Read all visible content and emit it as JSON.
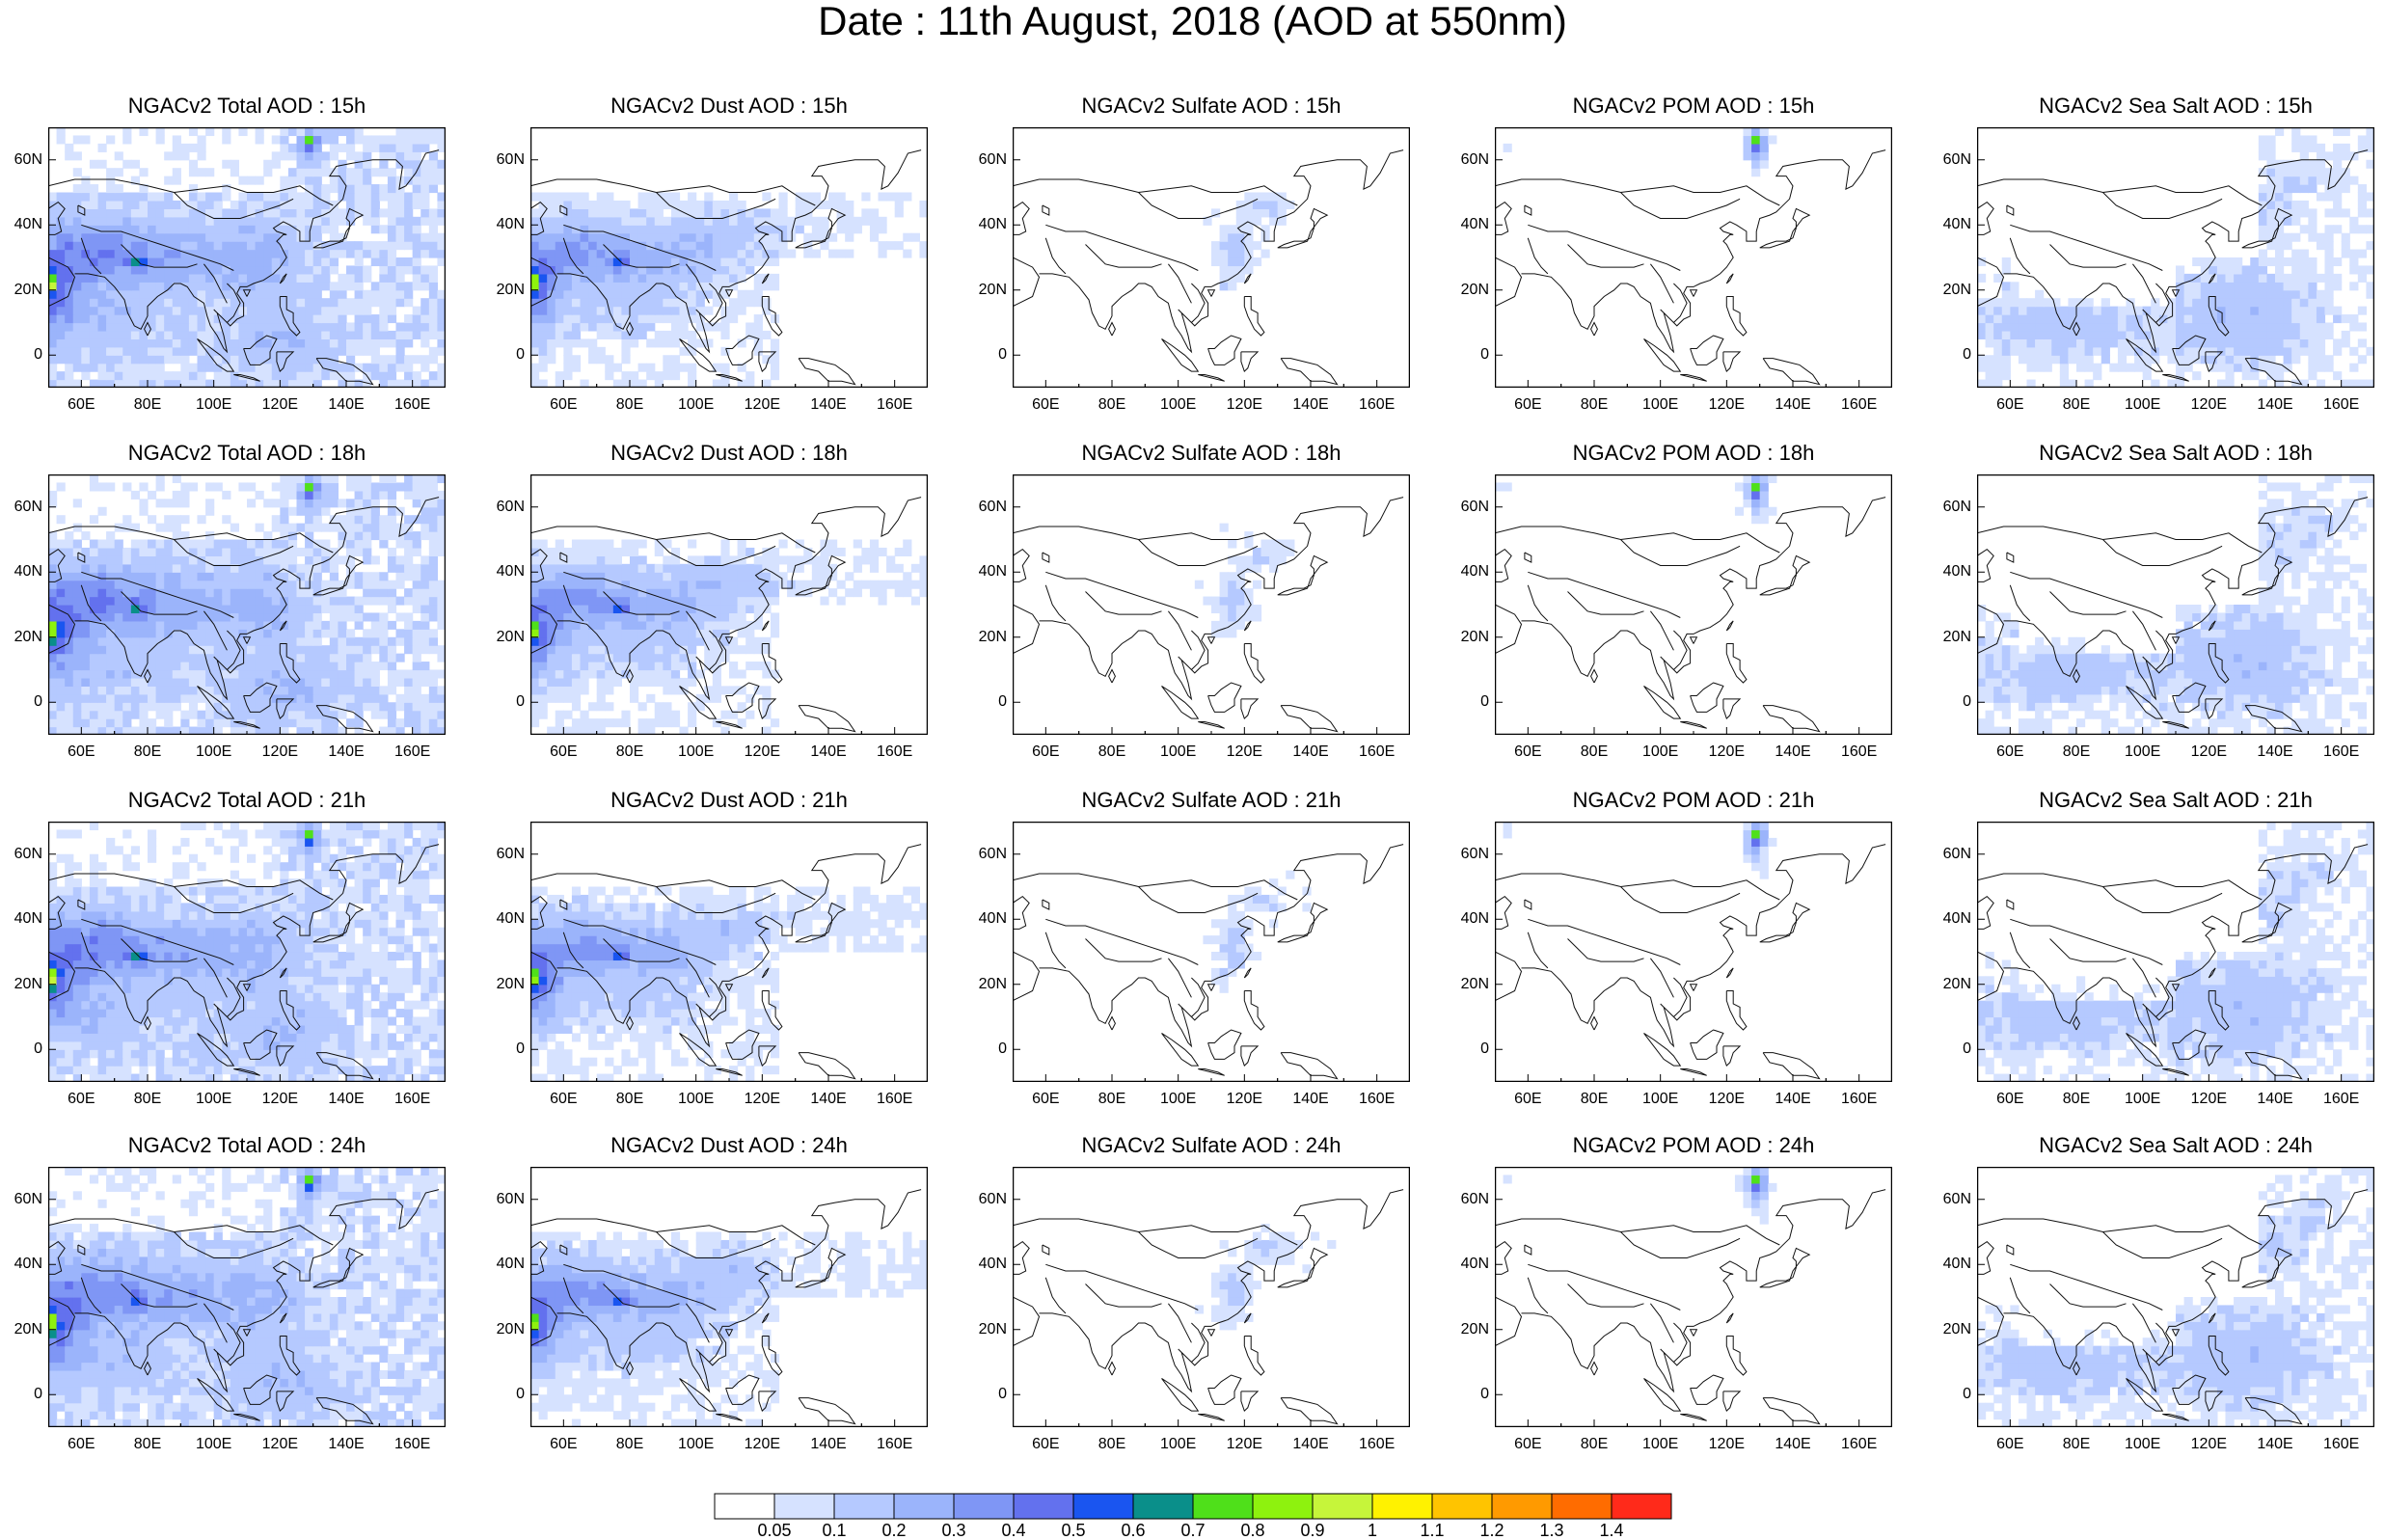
{
  "title": "Date : 11th August, 2018 (AOD at 550nm)",
  "rows": [
    {
      "hour": "15h",
      "titles": [
        "NGACv2 Total AOD : 15h",
        "NGACv2 Dust AOD : 15h",
        "NGACv2 Sulfate AOD : 15h",
        "NGACv2 POM AOD : 15h",
        "NGACv2 Sea Salt AOD : 15h"
      ]
    },
    {
      "hour": "18h",
      "titles": [
        "NGACv2 Total AOD : 18h",
        "NGACv2 Dust AOD : 18h",
        "NGACv2 Sulfate AOD : 18h",
        "NGACv2 POM AOD : 18h",
        "NGACv2 Sea Salt AOD : 18h"
      ]
    },
    {
      "hour": "21h",
      "titles": [
        "NGACv2 Total AOD : 21h",
        "NGACv2 Dust AOD : 21h",
        "NGACv2 Sulfate AOD : 21h",
        "NGACv2 POM AOD : 21h",
        "NGACv2 Sea Salt AOD : 21h"
      ]
    },
    {
      "hour": "24h",
      "titles": [
        "NGACv2 Total AOD : 24h",
        "NGACv2 Dust AOD : 24h",
        "NGACv2 Sulfate AOD : 24h",
        "NGACv2 POM AOD : 24h",
        "NGACv2 Sea Salt  AOD : 24h"
      ]
    }
  ],
  "species": [
    "Total",
    "Dust",
    "Sulfate",
    "POM",
    "Sea Salt"
  ],
  "map": {
    "lon_range": [
      50,
      170
    ],
    "lat_range": [
      -10,
      70
    ],
    "lat_ticks": [
      {
        "v": 60,
        "label": "60N"
      },
      {
        "v": 40,
        "label": "40N"
      },
      {
        "v": 20,
        "label": "20N"
      },
      {
        "v": 0,
        "label": "0"
      }
    ],
    "lon_ticks": [
      {
        "v": 60,
        "label": "60E"
      },
      {
        "v": 80,
        "label": "80E"
      },
      {
        "v": 100,
        "label": "100E"
      },
      {
        "v": 120,
        "label": "120E"
      },
      {
        "v": 140,
        "label": "140E"
      },
      {
        "v": 160,
        "label": "160E"
      }
    ]
  },
  "colorbar": {
    "labels": [
      "0.05",
      "0.1",
      "0.2",
      "0.3",
      "0.4",
      "0.5",
      "0.6",
      "0.7",
      "0.8",
      "0.9",
      "1",
      "1.1",
      "1.2",
      "1.3",
      "1.4"
    ],
    "colors": [
      "#ffffff",
      "#d6e2ff",
      "#b5c9ff",
      "#9bb4fb",
      "#7f96f5",
      "#6371ee",
      "#1a55f0",
      "#0a8f8a",
      "#4fe01a",
      "#8ef20e",
      "#c6f53a",
      "#fff200",
      "#ffc400",
      "#ff9a00",
      "#ff6c00",
      "#ff2a1a"
    ]
  }
}
